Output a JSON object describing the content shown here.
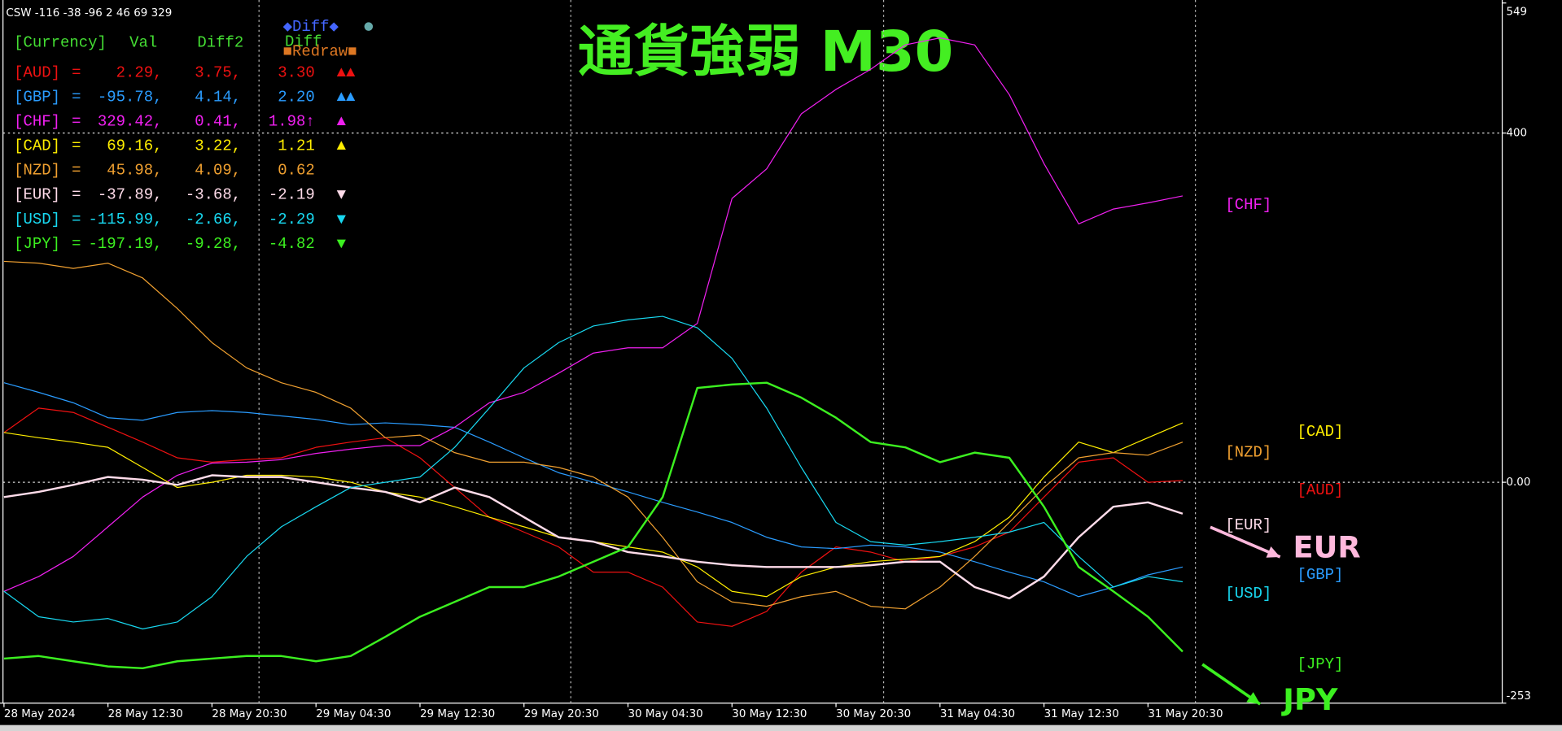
{
  "indicator_label": "CSW -116 -38 -96 2 46 69 329",
  "buttons": [
    "◆Diff◆",
    "●",
    "■Redraw■"
  ],
  "table": {
    "columns": [
      "[Currency]",
      "Val",
      "Diff2",
      "Diff"
    ],
    "rows": [
      [
        "[AUD]",
        "=",
        "2.29,",
        "3.75,",
        "3.30",
        "▲▲"
      ],
      [
        "[GBP]",
        "=",
        "-95.78,",
        "4.14,",
        "2.20",
        "▲▲"
      ],
      [
        "[CHF]",
        "=",
        "329.42,",
        "0.41,",
        "1.98↑",
        "▲"
      ],
      [
        "[CAD]",
        "=",
        "69.16,",
        "3.22,",
        "1.21",
        "▲"
      ],
      [
        "[NZD]",
        "=",
        "45.98,",
        "4.09,",
        "0.62"
      ],
      [
        "[EUR]",
        "=",
        "-37.89,",
        "-3.68,",
        "-2.19",
        "▼"
      ],
      [
        "[USD]",
        "=",
        "-115.99,",
        "-2.66,",
        "-2.29",
        "▼"
      ],
      [
        "[JPY]",
        "=",
        "-197.19,",
        "-9.28,",
        "-4.82",
        "▼"
      ]
    ]
  },
  "chart_data": {
    "type": "line",
    "title": "通貨強弱  M30",
    "categories": [
      "28 May 2024",
      null,
      null,
      "28 May 12:30",
      null,
      null,
      "28 May 20:30",
      null,
      null,
      "29 May 04:30",
      null,
      null,
      "29 May 12:30",
      null,
      null,
      "29 May 20:30",
      null,
      null,
      "30 May 04:30",
      null,
      null,
      "30 May 12:30",
      null,
      null,
      "30 May 20:30",
      null,
      null,
      "31 May 04:30",
      null,
      null,
      "31 May 12:30",
      null,
      null,
      "31 May 20:30",
      null
    ],
    "ylim": [
      -253,
      549
    ],
    "yticks": [
      549,
      400,
      {
        "value": 0,
        "label": "0.00"
      },
      -253
    ],
    "grid": true,
    "series": [
      {
        "name": "[AUD]",
        "color": "#ee1111",
        "values": [
          57,
          85,
          80,
          63,
          46,
          28,
          23,
          26,
          28,
          40,
          46,
          51,
          28,
          -6,
          -40,
          -57,
          -74,
          -103,
          -103,
          -120,
          -160,
          -165,
          -148,
          -103,
          -74,
          -80,
          -91,
          -85,
          -74,
          -57,
          -17,
          23,
          28,
          0,
          2
        ]
      },
      {
        "name": "[GBP]",
        "color": "#2a9cff",
        "values": [
          114,
          103,
          91,
          74,
          71,
          80,
          82,
          80,
          76,
          72,
          66,
          68,
          66,
          63,
          46,
          28,
          11,
          0,
          -11,
          -23,
          -34,
          -46,
          -63,
          -74,
          -76,
          -72,
          -74,
          -80,
          -91,
          -103,
          -114,
          -131,
          -120,
          -106,
          -97
        ]
      },
      {
        "name": "[CHF]",
        "color": "#f020f0",
        "values": [
          -125,
          -108,
          -85,
          -51,
          -17,
          8,
          22,
          23,
          26,
          33,
          38,
          42,
          42,
          63,
          91,
          103,
          125,
          148,
          154,
          154,
          182,
          325,
          359,
          422,
          450,
          473,
          501,
          509,
          501,
          444,
          365,
          296,
          313,
          320,
          328
        ]
      },
      {
        "name": "[CAD]",
        "color": "#ffee00",
        "values": [
          57,
          51,
          46,
          40,
          17,
          -6,
          0,
          8,
          8,
          6,
          0,
          -11,
          -17,
          -28,
          -40,
          -51,
          -63,
          -68,
          -74,
          -80,
          -97,
          -125,
          -131,
          -108,
          -97,
          -91,
          -88,
          -85,
          -68,
          -40,
          6,
          46,
          34,
          51,
          68
        ]
      },
      {
        "name": "[NZD]",
        "color": "#f0a030",
        "values": [
          253,
          251,
          245,
          251,
          234,
          199,
          160,
          131,
          114,
          103,
          85,
          51,
          54,
          34,
          23,
          23,
          17,
          6,
          -17,
          -63,
          -114,
          -137,
          -142,
          -131,
          -125,
          -142,
          -145,
          -120,
          -85,
          -46,
          -6,
          28,
          34,
          31,
          46
        ]
      },
      {
        "name": "[EUR]",
        "color": "#ffdcea",
        "values": [
          -17,
          -11,
          -3,
          6,
          3,
          -3,
          8,
          6,
          6,
          0,
          -6,
          -11,
          -23,
          -6,
          -17,
          -40,
          -63,
          -68,
          -80,
          -85,
          -91,
          -95,
          -97,
          -97,
          -97,
          -95,
          -91,
          -91,
          -120,
          -133,
          -108,
          -63,
          -28,
          -23,
          -36
        ]
      },
      {
        "name": "[USD]",
        "color": "#18d8f0",
        "values": [
          -125,
          -154,
          -160,
          -156,
          -168,
          -160,
          -131,
          -85,
          -51,
          -28,
          -6,
          0,
          6,
          40,
          85,
          131,
          160,
          179,
          186,
          190,
          177,
          142,
          85,
          17,
          -46,
          -68,
          -72,
          -68,
          -63,
          -57,
          -46,
          -85,
          -120,
          -108,
          -114
        ]
      },
      {
        "name": "[JPY]",
        "color": "#3cf020",
        "values": [
          -202,
          -199,
          -205,
          -211,
          -213,
          -205,
          -202,
          -199,
          -199,
          -205,
          -199,
          -177,
          -154,
          -137,
          -120,
          -120,
          -108,
          -91,
          -74,
          -17,
          108,
          112,
          114,
          97,
          74,
          46,
          40,
          23,
          34,
          28,
          -28,
          -97,
          -125,
          -154,
          -194
        ]
      }
    ],
    "annotations": [
      {
        "text": "EUR",
        "color": "#ffb8dc"
      },
      {
        "text": "JPY",
        "color": "#3cf020"
      }
    ]
  }
}
